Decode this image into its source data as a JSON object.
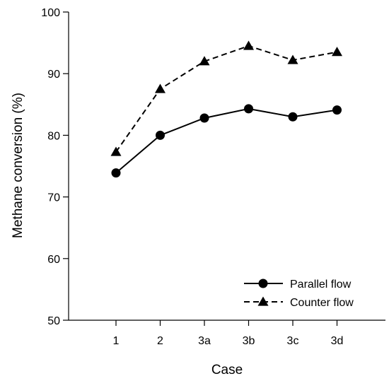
{
  "chart_data": {
    "type": "line",
    "categories": [
      "1",
      "2",
      "3a",
      "3b",
      "3c",
      "3d"
    ],
    "series": [
      {
        "name": "Parallel flow",
        "values": [
          73.9,
          80.0,
          82.8,
          84.3,
          83.0,
          84.1
        ],
        "marker": "circle",
        "line_style": "solid",
        "color": "#000000"
      },
      {
        "name": "Counter flow",
        "values": [
          77.3,
          87.5,
          92.0,
          94.5,
          92.2,
          93.5
        ],
        "marker": "triangle",
        "line_style": "dashed",
        "color": "#000000"
      }
    ],
    "xlabel": "Case",
    "ylabel": "Methane conversion (%)",
    "ylim": [
      50,
      100
    ],
    "yticks": [
      50,
      60,
      70,
      80,
      90,
      100
    ],
    "grid": false,
    "legend_position": "bottom-right"
  }
}
